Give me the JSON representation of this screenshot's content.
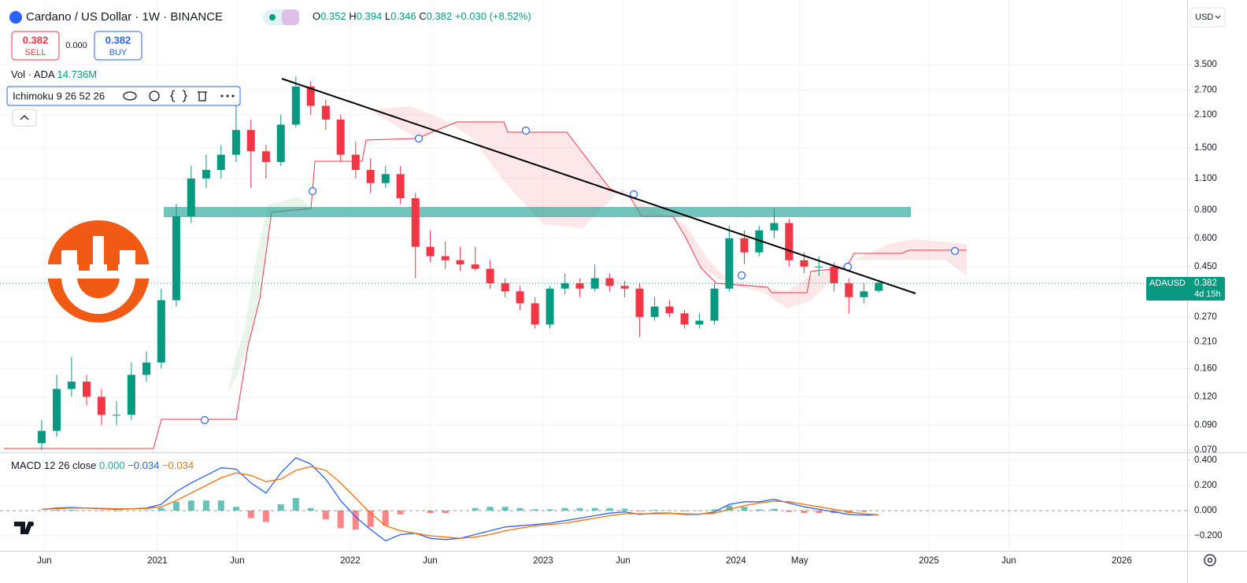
{
  "chart_data": {
    "type": "candlestick",
    "title": "Cardano / US Dollar · 1W · BINANCE",
    "ohlc_labels": [
      "O",
      "H",
      "L",
      "C"
    ],
    "change": "+0.030 (+8.52%)",
    "sell": {
      "label": "SELL",
      "spread": "0.000"
    },
    "buy": {
      "label": "BUY"
    },
    "volume_label": "Vol · ADA",
    "volume_value": "14.736M",
    "indicator": "Ichimoku 9 26 52 26",
    "currency": "USD",
    "symbol": "ADAUSD",
    "countdown": "4d 15h",
    "up_color": "#089981",
    "down_color": "#f23645",
    "log_scale": true,
    "grid": true,
    "xlim": [
      2020.184,
      2026.339
    ],
    "xticks": [
      {
        "value": 2020.414,
        "label": "Jun"
      },
      {
        "value": 2021,
        "label": "2021"
      },
      {
        "value": 2021.414,
        "label": "Jun"
      },
      {
        "value": 2022,
        "label": "2022"
      },
      {
        "value": 2022.414,
        "label": "Jun"
      },
      {
        "value": 2023,
        "label": "2023"
      },
      {
        "value": 2023.414,
        "label": "Jun"
      },
      {
        "value": 2024,
        "label": "2024"
      },
      {
        "value": 2024.33,
        "label": "May"
      },
      {
        "value": 2025,
        "label": "2025"
      },
      {
        "value": 2025.414,
        "label": "Jun"
      },
      {
        "value": 2026,
        "label": "2026"
      }
    ],
    "ylim": [
      0.0683,
      6.73
    ],
    "yticks": [
      {
        "value": 3.5,
        "label": "3.500"
      },
      {
        "value": 2.7,
        "label": "2.700"
      },
      {
        "value": 2.1,
        "label": "2.100"
      },
      {
        "value": 1.5,
        "label": "1.500"
      },
      {
        "value": 1.1,
        "label": "1.100"
      },
      {
        "value": 0.8,
        "label": "0.800"
      },
      {
        "value": 0.6,
        "label": "0.600"
      },
      {
        "value": 0.45,
        "label": "0.450"
      },
      {
        "value": 0.27,
        "label": "0.270"
      },
      {
        "value": 0.21,
        "label": "0.210"
      },
      {
        "value": 0.16,
        "label": "0.160"
      },
      {
        "value": 0.12,
        "label": "0.120"
      },
      {
        "value": 0.09,
        "label": "0.090"
      },
      {
        "value": 0.07,
        "label": "0.070"
      }
    ],
    "x": [
      2020.4,
      2020.478,
      2020.555,
      2020.633,
      2020.71,
      2020.788,
      2020.865,
      2020.943,
      2021.02,
      2021.098,
      2021.175,
      2021.253,
      2021.33,
      2021.408,
      2021.485,
      2021.563,
      2021.64,
      2021.718,
      2021.795,
      2021.873,
      2021.95,
      2022.028,
      2022.105,
      2022.183,
      2022.26,
      2022.338,
      2022.415,
      2022.493,
      2022.57,
      2022.648,
      2022.725,
      2022.803,
      2022.88,
      2022.958,
      2023.035,
      2023.113,
      2023.19,
      2023.268,
      2023.345,
      2023.423,
      2023.5,
      2023.578,
      2023.655,
      2023.733,
      2023.81,
      2023.888,
      2023.965,
      2024.043,
      2024.12,
      2024.198,
      2024.275,
      2024.353,
      2024.43,
      2024.508,
      2024.585,
      2024.663,
      2024.74
    ],
    "open": [
      0.075,
      0.085,
      0.13,
      0.14,
      0.12,
      0.1,
      0.1,
      0.15,
      0.17,
      0.32,
      0.75,
      1.1,
      1.2,
      1.4,
      1.8,
      1.45,
      1.3,
      1.9,
      2.8,
      2.3,
      2.0,
      1.4,
      1.2,
      1.05,
      1.15,
      0.9,
      0.55,
      0.5,
      0.48,
      0.46,
      0.44,
      0.38,
      0.35,
      0.31,
      0.25,
      0.36,
      0.38,
      0.36,
      0.4,
      0.37,
      0.36,
      0.27,
      0.3,
      0.28,
      0.25,
      0.26,
      0.36,
      0.6,
      0.52,
      0.65,
      0.7,
      0.48,
      0.45,
      0.45,
      0.38,
      0.33,
      0.352
    ],
    "high": [
      0.095,
      0.15,
      0.18,
      0.15,
      0.13,
      0.115,
      0.17,
      0.19,
      0.36,
      0.85,
      1.25,
      1.4,
      1.55,
      2.4,
      2.0,
      1.55,
      2.1,
      3.1,
      2.95,
      2.45,
      2.1,
      1.6,
      1.35,
      1.25,
      1.25,
      0.95,
      0.65,
      0.58,
      0.55,
      0.55,
      0.48,
      0.4,
      0.37,
      0.33,
      0.37,
      0.42,
      0.4,
      0.46,
      0.42,
      0.39,
      0.38,
      0.33,
      0.32,
      0.29,
      0.28,
      0.38,
      0.68,
      0.65,
      0.68,
      0.81,
      0.73,
      0.52,
      0.5,
      0.47,
      0.4,
      0.38,
      0.394
    ],
    "low": [
      0.07,
      0.08,
      0.12,
      0.11,
      0.09,
      0.09,
      0.095,
      0.14,
      0.16,
      0.3,
      0.7,
      1.0,
      1.1,
      1.3,
      1.0,
      1.1,
      1.25,
      1.85,
      2.1,
      1.8,
      1.3,
      1.1,
      0.95,
      1.0,
      0.85,
      0.4,
      0.47,
      0.44,
      0.43,
      0.43,
      0.36,
      0.33,
      0.29,
      0.24,
      0.24,
      0.34,
      0.33,
      0.35,
      0.35,
      0.33,
      0.22,
      0.26,
      0.27,
      0.24,
      0.24,
      0.25,
      0.35,
      0.46,
      0.5,
      0.6,
      0.45,
      0.42,
      0.41,
      0.35,
      0.28,
      0.31,
      0.346
    ],
    "close": [
      0.085,
      0.13,
      0.14,
      0.12,
      0.1,
      0.1,
      0.15,
      0.17,
      0.32,
      0.75,
      1.1,
      1.2,
      1.4,
      1.8,
      1.45,
      1.3,
      1.9,
      2.8,
      2.3,
      2.0,
      1.4,
      1.2,
      1.05,
      1.15,
      0.9,
      0.55,
      0.5,
      0.48,
      0.46,
      0.44,
      0.38,
      0.35,
      0.31,
      0.25,
      0.36,
      0.38,
      0.36,
      0.4,
      0.37,
      0.36,
      0.27,
      0.3,
      0.28,
      0.25,
      0.26,
      0.36,
      0.6,
      0.52,
      0.65,
      0.7,
      0.48,
      0.45,
      0.45,
      0.38,
      0.33,
      0.35,
      0.382
    ],
    "macd": {
      "type": "line",
      "title": "MACD 12 26 close",
      "legend_values": [
        "0.000",
        "−0.034",
        "−0.034"
      ],
      "ylim": [
        -0.319,
        0.45
      ],
      "yticks": [
        {
          "value": 0.4,
          "label": "0.400"
        },
        {
          "value": 0.2,
          "label": "0.200"
        },
        {
          "value": 0,
          "label": "0.000"
        },
        {
          "value": -0.2,
          "label": "−0.200"
        }
      ],
      "series": [
        {
          "name": "MACD",
          "color": "#2962ff",
          "values": [
            0.01,
            0.02,
            0.025,
            0.02,
            0.015,
            0.01,
            0.015,
            0.02,
            0.05,
            0.15,
            0.22,
            0.28,
            0.34,
            0.33,
            0.22,
            0.14,
            0.3,
            0.42,
            0.37,
            0.25,
            0.08,
            -0.05,
            -0.15,
            -0.24,
            -0.19,
            -0.18,
            -0.22,
            -0.23,
            -0.22,
            -0.19,
            -0.16,
            -0.13,
            -0.12,
            -0.11,
            -0.1,
            -0.08,
            -0.06,
            -0.04,
            -0.02,
            -0.01,
            -0.03,
            -0.02,
            -0.02,
            -0.03,
            -0.03,
            -0.01,
            0.05,
            0.07,
            0.07,
            0.09,
            0.06,
            0.03,
            0.01,
            -0.01,
            -0.03,
            -0.035,
            -0.034
          ]
        },
        {
          "name": "Signal",
          "color": "#ff6d00",
          "values": [
            0.01,
            0.015,
            0.02,
            0.02,
            0.018,
            0.015,
            0.015,
            0.017,
            0.03,
            0.08,
            0.14,
            0.2,
            0.26,
            0.3,
            0.28,
            0.23,
            0.25,
            0.32,
            0.35,
            0.32,
            0.22,
            0.1,
            -0.02,
            -0.12,
            -0.16,
            -0.18,
            -0.2,
            -0.21,
            -0.22,
            -0.21,
            -0.19,
            -0.16,
            -0.14,
            -0.12,
            -0.11,
            -0.1,
            -0.08,
            -0.06,
            -0.04,
            -0.025,
            -0.025,
            -0.025,
            -0.022,
            -0.025,
            -0.028,
            -0.02,
            0.01,
            0.04,
            0.06,
            0.075,
            0.07,
            0.05,
            0.03,
            0.01,
            -0.01,
            -0.025,
            -0.034
          ]
        }
      ],
      "histogram": {
        "up_color": "#26a69a",
        "down_color": "#ff5252",
        "values": [
          0,
          0.005,
          0.005,
          0,
          -0.003,
          -0.005,
          0,
          0.003,
          0.02,
          0.07,
          0.08,
          0.08,
          0.08,
          0.03,
          -0.06,
          -0.09,
          0.05,
          0.1,
          0.02,
          -0.07,
          -0.14,
          -0.15,
          -0.13,
          -0.12,
          -0.03,
          0,
          -0.02,
          -0.02,
          0,
          0.02,
          0.03,
          0.03,
          0.02,
          0.01,
          0.01,
          0.02,
          0.02,
          0.02,
          0.02,
          0.015,
          -0.005,
          0.005,
          0.002,
          -0.005,
          -0.002,
          0.01,
          0.04,
          0.03,
          0.01,
          0.015,
          -0.01,
          -0.02,
          -0.02,
          -0.02,
          -0.02,
          -0.01,
          0
        ]
      }
    }
  }
}
